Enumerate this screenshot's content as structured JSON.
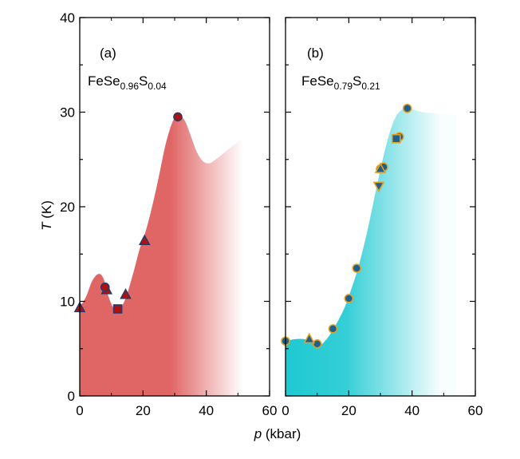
{
  "figure": {
    "ylabel_italic": "T",
    "ylabel_unit": " (K)",
    "xlabel_italic": "p",
    "xlabel_unit": " (kbar)"
  },
  "chart_data": [
    {
      "type": "scatter",
      "panel_label": "(a)",
      "formula": {
        "base": "FeSe",
        "sub1": "0.96",
        "mid": "S",
        "sub2": "0.04"
      },
      "xlim": [
        0,
        60
      ],
      "ylim": [
        0,
        40
      ],
      "xticks": [
        "0",
        "20",
        "40",
        "60"
      ],
      "yticks": [
        "0",
        "10",
        "20",
        "30",
        "40"
      ],
      "colors": {
        "fill": "#e06666",
        "marker_fill": "#b01010",
        "marker_edge": "#2a3a6a"
      },
      "region_boundary": [
        [
          0,
          9.4
        ],
        [
          2,
          10.5
        ],
        [
          4,
          12.2
        ],
        [
          6,
          12.9
        ],
        [
          7.5,
          12.4
        ],
        [
          9,
          10.6
        ],
        [
          10.5,
          9.4
        ],
        [
          12,
          9.1
        ],
        [
          13.5,
          9.6
        ],
        [
          15,
          10.8
        ],
        [
          17,
          13.1
        ],
        [
          19,
          15.6
        ],
        [
          21,
          17.6
        ],
        [
          23,
          20.2
        ],
        [
          25,
          23.2
        ],
        [
          27,
          26.4
        ],
        [
          29,
          28.7
        ],
        [
          30.5,
          29.6
        ],
        [
          32,
          29.6
        ],
        [
          33.5,
          28.9
        ],
        [
          35,
          27.6
        ],
        [
          37,
          25.8
        ],
        [
          39,
          24.8
        ],
        [
          41,
          24.6
        ],
        [
          43,
          25.0
        ],
        [
          46,
          25.8
        ],
        [
          49,
          26.6
        ],
        [
          52,
          27.2
        ]
      ],
      "series": [
        {
          "marker": "triangle",
          "points": [
            [
              0,
              9.3
            ],
            [
              8.5,
              11.2
            ],
            [
              14.5,
              10.7
            ],
            [
              20.5,
              16.4
            ]
          ]
        },
        {
          "marker": "circle",
          "points": [
            [
              8,
              11.5
            ],
            [
              31,
              29.5
            ]
          ]
        },
        {
          "marker": "square",
          "points": [
            [
              12,
              9.2
            ]
          ]
        }
      ]
    },
    {
      "type": "scatter",
      "panel_label": "(b)",
      "formula": {
        "base": "FeSe",
        "sub1": "0.79",
        "mid": "S",
        "sub2": "0.21"
      },
      "xlim": [
        0,
        60
      ],
      "ylim": [
        0,
        40
      ],
      "xticks": [
        "0",
        "20",
        "40",
        "60"
      ],
      "yticks": [],
      "colors": {
        "fill": "#1ec9d2",
        "marker_fill": "#1e5f8f",
        "marker_edge": "#e0a020"
      },
      "region_boundary": [
        [
          0,
          5.8
        ],
        [
          3,
          6.0
        ],
        [
          6,
          6.0
        ],
        [
          9,
          5.6
        ],
        [
          11,
          5.4
        ],
        [
          13,
          6.0
        ],
        [
          15,
          7.0
        ],
        [
          17,
          8.2
        ],
        [
          19,
          9.6
        ],
        [
          21,
          11.5
        ],
        [
          23,
          13.6
        ],
        [
          25,
          16.2
        ],
        [
          27,
          19.2
        ],
        [
          29,
          22.4
        ],
        [
          31,
          25.4
        ],
        [
          33,
          27.9
        ],
        [
          35,
          29.6
        ],
        [
          37,
          30.3
        ],
        [
          39,
          30.4
        ],
        [
          42,
          30.1
        ],
        [
          46,
          29.9
        ],
        [
          50,
          29.8
        ],
        [
          54,
          29.7
        ]
      ],
      "series": [
        {
          "marker": "circle",
          "points": [
            [
              0,
              5.8
            ],
            [
              10,
              5.5
            ],
            [
              15,
              7.1
            ],
            [
              20,
              10.3
            ],
            [
              22.5,
              13.5
            ],
            [
              30,
              24.0
            ],
            [
              31,
              24.2
            ],
            [
              36,
              27.4
            ],
            [
              38.5,
              30.4
            ]
          ]
        },
        {
          "marker": "triangle",
          "points": [
            [
              7.5,
              6.0
            ],
            [
              30,
              24.0
            ]
          ]
        },
        {
          "marker": "triangle-down",
          "points": [
            [
              29.5,
              22.2
            ]
          ]
        },
        {
          "marker": "square",
          "points": [
            [
              35,
              27.2
            ]
          ]
        }
      ]
    }
  ]
}
